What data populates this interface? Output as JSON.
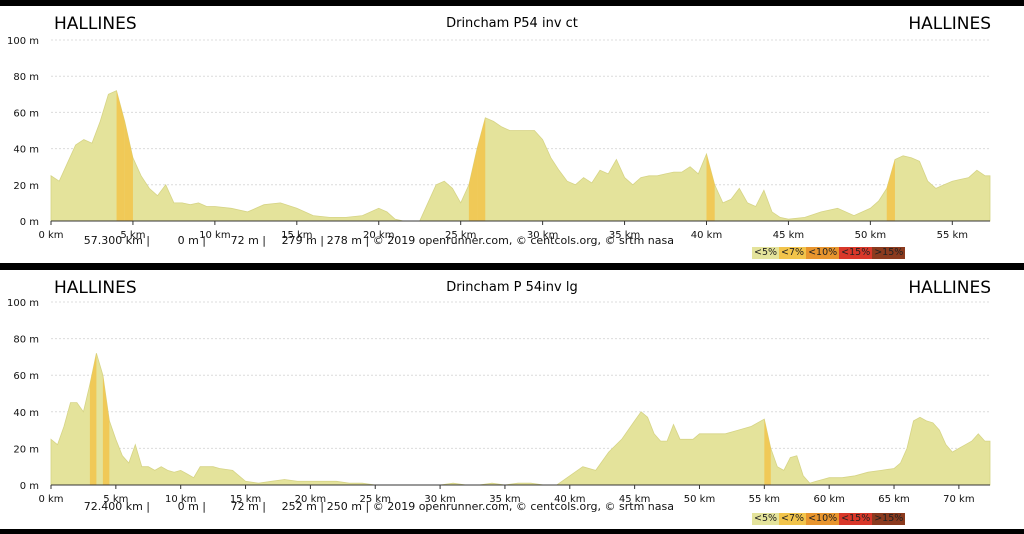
{
  "legend": [
    {
      "label": "<5%",
      "color": "#e4e39b"
    },
    {
      "label": "<7%",
      "color": "#f2c44b"
    },
    {
      "label": "<10%",
      "color": "#e8952e"
    },
    {
      "label": "<15%",
      "color": "#d9382a"
    },
    {
      "label": ">15%",
      "color": "#8b3a1e"
    }
  ],
  "panels": [
    {
      "start": "HALLINES",
      "end": "HALLINES",
      "title": "Drincham P54 inv ct",
      "stats": {
        "distance": "57.300 km |",
        "min": "0 m |",
        "max": "72 m |",
        "climb": "279 m |",
        "descent": "278 m | © 2019 openrunner.com, © centcols.org, © srtm nasa"
      }
    },
    {
      "start": "HALLINES",
      "end": "HALLINES",
      "title": "Drincham P 54inv lg",
      "stats": {
        "distance": "72.400 km |",
        "min": "0 m |",
        "max": "72 m |",
        "climb": "252 m |",
        "descent": "250 m | © 2019 openrunner.com, © centcols.org, © srtm nasa"
      }
    }
  ],
  "chart_data": [
    {
      "type": "area",
      "title": "Drincham P54 inv ct",
      "xlabel": "",
      "ylabel": "",
      "xlim": [
        0,
        57.3
      ],
      "ylim": [
        0,
        100
      ],
      "x_ticks": [
        "0 km",
        "5 km",
        "10 km",
        "15 km",
        "20 km",
        "25 km",
        "30 km",
        "35 km",
        "40 km",
        "45 km",
        "50 km",
        "55 km"
      ],
      "y_ticks": [
        "0 m",
        "20 m",
        "40 m",
        "60 m",
        "80 m",
        "100 m"
      ],
      "grid": true,
      "series": [
        {
          "x": [
            0,
            0.5,
            1,
            1.5,
            2,
            2.5,
            3,
            3.5,
            4,
            4.5,
            5,
            5.5,
            6,
            6.5,
            7,
            7.5,
            8,
            8.5,
            9,
            9.5,
            10,
            11,
            12,
            13,
            14,
            15,
            16,
            17,
            18,
            19,
            20,
            20.5,
            21,
            21.5,
            22,
            22.5,
            23,
            23.5,
            24,
            24.5,
            25,
            25.5,
            26,
            26.5,
            27,
            27.5,
            28,
            28.5,
            29,
            29.5,
            30,
            30.5,
            31,
            31.5,
            32,
            32.5,
            33,
            33.5,
            34,
            34.5,
            35,
            35.5,
            36,
            36.5,
            37,
            37.5,
            38,
            38.5,
            39,
            39.5,
            40,
            40.5,
            41,
            41.5,
            42,
            42.5,
            43,
            43.5,
            44,
            44.5,
            45,
            46,
            47,
            48,
            49,
            50,
            50.5,
            51,
            51.5,
            52,
            52.5,
            53,
            53.5,
            54,
            54.5,
            55,
            55.5,
            56,
            56.5,
            57,
            57.3
          ],
          "y": [
            25,
            22,
            32,
            42,
            45,
            43,
            55,
            70,
            72,
            55,
            35,
            25,
            18,
            14,
            20,
            10,
            10,
            9,
            10,
            8,
            8,
            7,
            5,
            9,
            10,
            7,
            3,
            2,
            2,
            3,
            7,
            5,
            1,
            0,
            0,
            0,
            10,
            20,
            22,
            18,
            10,
            20,
            40,
            57,
            55,
            52,
            50,
            50,
            50,
            50,
            45,
            35,
            28,
            22,
            20,
            24,
            21,
            28,
            26,
            34,
            24,
            20,
            24,
            25,
            25,
            26,
            27,
            27,
            30,
            26,
            37,
            20,
            10,
            12,
            18,
            10,
            8,
            17,
            5,
            2,
            1,
            2,
            5,
            7,
            3,
            7,
            11,
            18,
            34,
            36,
            35,
            33,
            22,
            18,
            20,
            22,
            23,
            24,
            28,
            25,
            25
          ]
        }
      ]
    },
    {
      "type": "area",
      "title": "Drincham P 54inv lg",
      "xlabel": "",
      "ylabel": "",
      "xlim": [
        0,
        72.4
      ],
      "ylim": [
        0,
        100
      ],
      "x_ticks": [
        "0 km",
        "5 km",
        "10 km",
        "15 km",
        "20 km",
        "25 km",
        "30 km",
        "35 km",
        "40 km",
        "45 km",
        "50 km",
        "55 km",
        "60 km",
        "65 km",
        "70 km"
      ],
      "y_ticks": [
        "0 m",
        "20 m",
        "40 m",
        "60 m",
        "80 m",
        "100 m"
      ],
      "grid": true,
      "series": [
        {
          "x": [
            0,
            0.5,
            1,
            1.5,
            2,
            2.5,
            3,
            3.5,
            4,
            4.5,
            5,
            5.5,
            6,
            6.5,
            7,
            7.5,
            8,
            8.5,
            9,
            9.5,
            10,
            10.5,
            11,
            11.5,
            12,
            12.5,
            13,
            14,
            15,
            16,
            17,
            18,
            19,
            20,
            21,
            22,
            23,
            24,
            25,
            26,
            27,
            28,
            29,
            30,
            31,
            32,
            33,
            34,
            35,
            36,
            37,
            38,
            39,
            40,
            41,
            42,
            43,
            44,
            45,
            45.5,
            46,
            46.5,
            47,
            47.5,
            48,
            48.5,
            49,
            49.5,
            50,
            51,
            52,
            53,
            54,
            55,
            55.5,
            56,
            56.5,
            57,
            57.5,
            58,
            58.5,
            59,
            59.5,
            60,
            61,
            62,
            63,
            64,
            65,
            65.5,
            66,
            66.5,
            67,
            67.5,
            68,
            68.5,
            69,
            69.5,
            70,
            70.5,
            71,
            71.5,
            72,
            72.4
          ],
          "y": [
            25,
            22,
            32,
            45,
            45,
            40,
            55,
            72,
            60,
            35,
            25,
            16,
            12,
            22,
            10,
            10,
            8,
            10,
            8,
            7,
            8,
            6,
            4,
            10,
            10,
            10,
            9,
            8,
            2,
            1,
            2,
            3,
            2,
            2,
            2,
            2,
            1,
            1,
            0,
            0,
            0,
            0,
            0,
            0,
            1,
            0,
            0,
            1,
            0,
            1,
            1,
            0,
            0,
            5,
            10,
            8,
            18,
            25,
            35,
            40,
            37,
            28,
            24,
            24,
            33,
            25,
            25,
            25,
            28,
            28,
            28,
            30,
            32,
            36,
            20,
            10,
            8,
            15,
            16,
            5,
            1,
            2,
            3,
            4,
            4,
            5,
            7,
            8,
            9,
            12,
            20,
            35,
            37,
            35,
            34,
            30,
            22,
            18,
            20,
            22,
            24,
            28,
            24,
            24
          ]
        }
      ]
    }
  ]
}
